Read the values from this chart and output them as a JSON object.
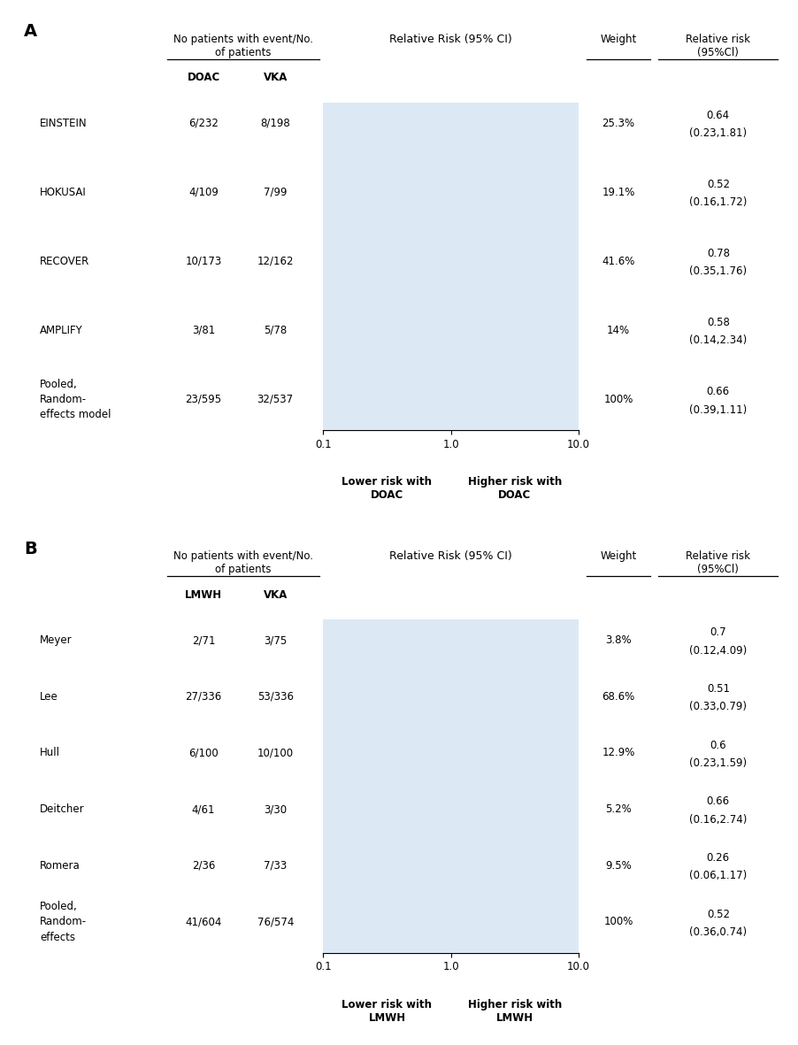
{
  "panel_A": {
    "label": "A",
    "title": "Relative Risk (95% CI)",
    "col2_header": "DOAC",
    "col3_header": "VKA",
    "xlabel_left": "Lower risk with\nDOAC",
    "xlabel_right": "Higher risk with\nDOAC",
    "studies": [
      "EINSTEIN",
      "HOKUSAI",
      "RECOVER",
      "AMPLIFY",
      "Pooled,\nRandom-\neffects model"
    ],
    "doac_vals": [
      "6/232",
      "4/109",
      "10/173",
      "3/81",
      "23/595"
    ],
    "vka_vals": [
      "8/198",
      "7/99",
      "12/162",
      "5/78",
      "32/537"
    ],
    "rr": [
      0.64,
      0.52,
      0.78,
      0.58,
      0.66
    ],
    "ci_low": [
      0.23,
      0.16,
      0.35,
      0.14,
      0.39
    ],
    "ci_high": [
      1.81,
      1.72,
      1.76,
      2.34,
      1.11
    ],
    "weights": [
      "25.3%",
      "19.1%",
      "41.6%",
      "14%",
      "100%"
    ],
    "rr_text": [
      "0.64\n(0.23,1.81)",
      "0.52\n(0.16,1.72)",
      "0.78\n(0.35,1.76)",
      "0.58\n(0.14,2.34)",
      "0.66\n(0.39,1.11)"
    ],
    "is_pooled": [
      false,
      false,
      false,
      false,
      true
    ],
    "marker_sizes": [
      5,
      4,
      8,
      3,
      16
    ]
  },
  "panel_B": {
    "label": "B",
    "title": "Relative Risk (95% CI)",
    "col2_header": "LMWH",
    "col3_header": "VKA",
    "xlabel_left": "Lower risk with\nLMWH",
    "xlabel_right": "Higher risk with\nLMWH",
    "studies": [
      "Meyer",
      "Lee",
      "Hull",
      "Deitcher",
      "Romera",
      "Pooled,\nRandom-\neffects"
    ],
    "doac_vals": [
      "2/71",
      "27/336",
      "6/100",
      "4/61",
      "2/36",
      "41/604"
    ],
    "vka_vals": [
      "3/75",
      "53/336",
      "10/100",
      "3/30",
      "7/33",
      "76/574"
    ],
    "rr": [
      0.7,
      0.51,
      0.6,
      0.66,
      0.26,
      0.52
    ],
    "ci_low": [
      0.12,
      0.33,
      0.23,
      0.16,
      0.06,
      0.36
    ],
    "ci_high": [
      4.09,
      0.79,
      1.59,
      2.74,
      1.17,
      0.74
    ],
    "weights": [
      "3.8%",
      "68.6%",
      "12.9%",
      "5.2%",
      "9.5%",
      "100%"
    ],
    "rr_text": [
      "0.7\n(0.12,4.09)",
      "0.51\n(0.33,0.79)",
      "0.6\n(0.23,1.59)",
      "0.66\n(0.16,2.74)",
      "0.26\n(0.06,1.17)",
      "0.52\n(0.36,0.74)"
    ],
    "is_pooled": [
      false,
      false,
      false,
      false,
      false,
      true
    ],
    "marker_sizes": [
      3,
      12,
      5,
      4,
      4,
      14
    ]
  },
  "bg_color": "#dce9f5"
}
